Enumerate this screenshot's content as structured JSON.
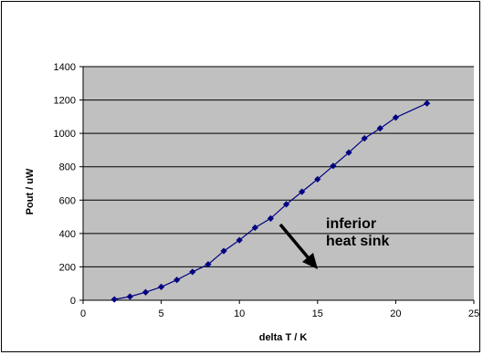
{
  "colors": {
    "plot_bg": "#c0c0c0",
    "series": "#000080",
    "grid": "#000000",
    "arrow": "#000000"
  },
  "chart_data": {
    "type": "line",
    "title": "",
    "xlabel": "delta T / K",
    "ylabel": "Pout / uW",
    "xlim": [
      0,
      25
    ],
    "ylim": [
      0,
      1400
    ],
    "x_ticks": [
      0,
      5,
      10,
      15,
      20,
      25
    ],
    "y_ticks": [
      0,
      200,
      400,
      600,
      800,
      1000,
      1200,
      1400
    ],
    "grid": "horizontal",
    "legend": "none",
    "series": [
      {
        "x": [
          2,
          3,
          4,
          5,
          6,
          7,
          8,
          9,
          10,
          11,
          12,
          13,
          14,
          15,
          16,
          17,
          18,
          19,
          20,
          22
        ],
        "y": [
          5,
          22,
          48,
          80,
          122,
          170,
          215,
          295,
          360,
          435,
          490,
          575,
          650,
          725,
          805,
          885,
          970,
          1030,
          1095,
          1180
        ],
        "marker": "diamond"
      }
    ],
    "annotations": [
      {
        "text_lines": [
          "inferior",
          "heat sink"
        ]
      }
    ]
  }
}
